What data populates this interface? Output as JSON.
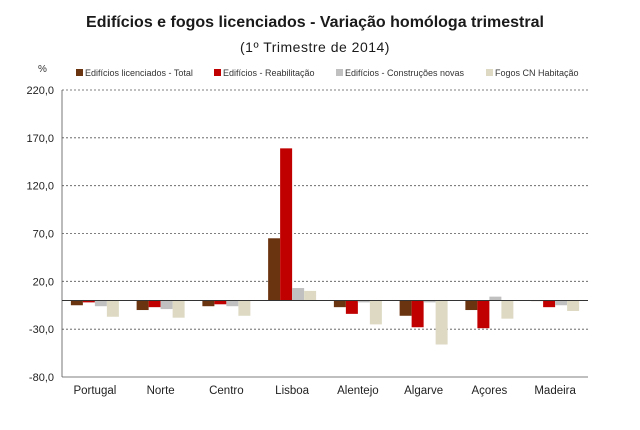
{
  "chart_data": {
    "type": "bar",
    "title": "Edifícios e fogos licenciados - Variação homóloga trimestral",
    "subtitle": "(1º Trimestre de 2014)",
    "ylabel": "%",
    "ylim": [
      -80,
      220
    ],
    "yticks": [
      "220,0",
      "170,0",
      "120,0",
      "70,0",
      "20,0",
      "-30,0",
      "-80,0"
    ],
    "ytick_values": [
      220,
      170,
      120,
      70,
      20,
      -30,
      -80
    ],
    "grid": "horizontal dashed",
    "legend_position": "top",
    "categories": [
      "Portugal",
      "Norte",
      "Centro",
      "Lisboa",
      "Alentejo",
      "Algarve",
      "Açores",
      "Madeira"
    ],
    "series": [
      {
        "name": "Edifícios licenciados - Total",
        "color": "#6b3410",
        "values": [
          -5,
          -10,
          -6,
          65,
          -7,
          -16,
          -10,
          0
        ]
      },
      {
        "name": "Edifícios - Reabilitação",
        "color": "#c00000",
        "values": [
          -2,
          -7,
          -4,
          159,
          -14,
          -28,
          -29,
          -7
        ]
      },
      {
        "name": "Edifícios - Construções novas",
        "color": "#c0c0c0",
        "values": [
          -6,
          -9,
          -6,
          13,
          -2,
          -2,
          4,
          -5
        ]
      },
      {
        "name": "Fogos CN Habitação",
        "color": "#ddd9c3",
        "values": [
          -17,
          -18,
          -16,
          10,
          -25,
          -46,
          -19,
          -11
        ]
      }
    ]
  }
}
